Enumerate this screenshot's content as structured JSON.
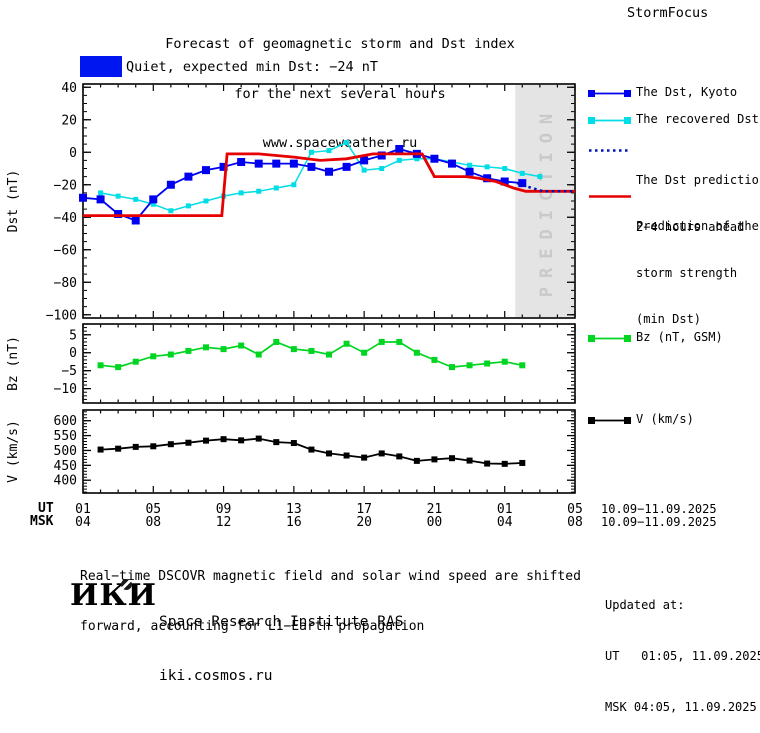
{
  "header": {
    "title_line1": "Forecast of geomagnetic storm and Dst index",
    "title_line2": "for the next several hours",
    "title_line3": "www.spaceweather.ru",
    "brand": "StormFocus"
  },
  "status": {
    "label": "Quiet, expected min Dst: −24 nT",
    "box_color": "#0016f0"
  },
  "legend": {
    "dst_items": [
      {
        "style": "squares-line",
        "color": "#0000f0",
        "label_lines": [
          "The Dst, Kyoto"
        ]
      },
      {
        "style": "squares-line",
        "color": "#00dde6",
        "label_lines": [
          "The recovered Dst"
        ]
      },
      {
        "style": "dotted",
        "color": "#0011bb",
        "label_lines": [
          "The Dst prediction",
          "2−4 hours ahead"
        ]
      },
      {
        "style": "line",
        "color": "#e60000",
        "label_lines": [
          "Prediction of the",
          "storm strength",
          "(min Dst)"
        ]
      }
    ],
    "bz_item": {
      "style": "squares-line",
      "color": "#00d522",
      "label_lines": [
        "Bz (nT, GSM)"
      ]
    },
    "v_item": {
      "style": "squares-line",
      "color": "#000000",
      "label_lines": [
        "V (km/s)"
      ]
    }
  },
  "chart_data": {
    "type": "line",
    "x_axis": {
      "hours_domain": [
        1,
        29
      ],
      "major_tick_every": 4,
      "ut_prefix": "UT",
      "msk_prefix": "MSK",
      "ut_labels": [
        "01",
        "05",
        "09",
        "13",
        "17",
        "21",
        "01",
        "05"
      ],
      "msk_labels": [
        "04",
        "08",
        "12",
        "16",
        "20",
        "00",
        "04",
        "08"
      ],
      "date_range_ut": "10.09−11.09.2025",
      "date_range_msk": "10.09−11.09.2025"
    },
    "plots": [
      {
        "name": "dst",
        "ylabel": "Dst (nT)",
        "ydomain": [
          42,
          -102
        ],
        "yticks": [
          40,
          20,
          0,
          -20,
          -40,
          -60,
          -80,
          -100
        ],
        "yminor_step": 5,
        "prediction_band": {
          "start_hour": 25.6,
          "end_hour": 29,
          "label": "PREDICTION",
          "fill": "#e4e4e4",
          "text_color": "#c9c9c9"
        },
        "series": [
          {
            "id": "dst-recovered",
            "name": "The recovered Dst",
            "color": "#00dde6",
            "width": 1.5,
            "marker": 5,
            "points": [
              [
                2,
                -25
              ],
              [
                3,
                -27
              ],
              [
                4,
                -29
              ],
              [
                5,
                -32
              ],
              [
                6,
                -36
              ],
              [
                7,
                -33
              ],
              [
                8,
                -30
              ],
              [
                9,
                -27
              ],
              [
                10,
                -25
              ],
              [
                11,
                -24
              ],
              [
                12,
                -22
              ],
              [
                13,
                -20
              ],
              [
                14,
                0
              ],
              [
                15,
                1
              ],
              [
                16,
                6
              ],
              [
                17,
                -11
              ],
              [
                18,
                -10
              ],
              [
                19,
                -5
              ],
              [
                20,
                -4
              ],
              [
                21,
                -4
              ],
              [
                22,
                -6
              ],
              [
                23,
                -8
              ],
              [
                24,
                -9
              ],
              [
                25,
                -10
              ],
              [
                26,
                -13
              ],
              [
                27,
                -15
              ]
            ]
          },
          {
            "id": "dst-kyoto",
            "name": "The Dst, Kyoto",
            "color": "#0000f0",
            "width": 1.8,
            "marker": 8,
            "points": [
              [
                1,
                -28
              ],
              [
                2,
                -29
              ],
              [
                3,
                -38
              ],
              [
                4,
                -42
              ],
              [
                5,
                -29
              ],
              [
                6,
                -20
              ],
              [
                7,
                -15
              ],
              [
                8,
                -11
              ],
              [
                9,
                -9
              ],
              [
                10,
                -6
              ],
              [
                11,
                -7
              ],
              [
                12,
                -7
              ],
              [
                13,
                -7
              ],
              [
                14,
                -9
              ],
              [
                15,
                -12
              ],
              [
                16,
                -9
              ],
              [
                17,
                -5
              ],
              [
                18,
                -2
              ],
              [
                19,
                2
              ],
              [
                20,
                -1
              ],
              [
                21,
                -4
              ],
              [
                22,
                -7
              ],
              [
                23,
                -12
              ],
              [
                24,
                -16
              ],
              [
                25,
                -18
              ],
              [
                26,
                -19
              ]
            ]
          },
          {
            "id": "storm-strength",
            "name": "Prediction of the storm strength (min Dst)",
            "color": "#e60000",
            "width": 2.8,
            "marker": 0,
            "points": [
              [
                1,
                -39
              ],
              [
                8.9,
                -39
              ],
              [
                9.2,
                -1
              ],
              [
                11,
                -1
              ],
              [
                13,
                -3
              ],
              [
                14.5,
                -5
              ],
              [
                16,
                -4
              ],
              [
                17.5,
                -1
              ],
              [
                20.3,
                -1
              ],
              [
                21,
                -15
              ],
              [
                22.8,
                -15
              ],
              [
                23.5,
                -16
              ],
              [
                24.5,
                -18
              ],
              [
                25.5,
                -22
              ],
              [
                26.2,
                -24
              ],
              [
                29,
                -24
              ]
            ]
          },
          {
            "id": "dst-prediction",
            "name": "The Dst prediction 2−4 hours ahead",
            "color": "#0011bb",
            "width": 2.5,
            "marker": 0,
            "dash": "2.5 3.5",
            "points": [
              [
                25.7,
                -19
              ],
              [
                26.4,
                -21.5
              ],
              [
                27.2,
                -24
              ],
              [
                29,
                -24
              ]
            ]
          }
        ]
      },
      {
        "name": "bz",
        "ylabel": "Bz (nT)",
        "ydomain": [
          8,
          -14
        ],
        "yticks": [
          5,
          0,
          -5,
          -10
        ],
        "yminor_step": 1,
        "series": [
          {
            "id": "bz",
            "name": "Bz (nT, GSM)",
            "color": "#00d522",
            "width": 1.7,
            "marker": 6,
            "points": [
              [
                2,
                -3.5
              ],
              [
                3,
                -4
              ],
              [
                4,
                -2.5
              ],
              [
                5,
                -1
              ],
              [
                6,
                -0.5
              ],
              [
                7,
                0.5
              ],
              [
                8,
                1.5
              ],
              [
                9,
                1
              ],
              [
                10,
                2
              ],
              [
                11,
                -0.5
              ],
              [
                12,
                3
              ],
              [
                13,
                1
              ],
              [
                14,
                0.5
              ],
              [
                15,
                -0.5
              ],
              [
                16,
                2.5
              ],
              [
                17,
                0
              ],
              [
                18,
                3
              ],
              [
                19,
                3
              ],
              [
                20,
                0
              ],
              [
                21,
                -2
              ],
              [
                22,
                -4
              ],
              [
                23,
                -3.5
              ],
              [
                24,
                -3
              ],
              [
                25,
                -2.5
              ],
              [
                26,
                -3.5
              ]
            ]
          }
        ]
      },
      {
        "name": "v",
        "ylabel": "V (km/s)",
        "ydomain": [
          636,
          357
        ],
        "yticks": [
          600,
          550,
          500,
          450,
          400
        ],
        "yminor_step": 10,
        "series": [
          {
            "id": "v",
            "name": "V (km/s)",
            "color": "#000000",
            "width": 1.8,
            "marker": 6,
            "points": [
              [
                2,
                503
              ],
              [
                3,
                506
              ],
              [
                4,
                512
              ],
              [
                5,
                514
              ],
              [
                6,
                521
              ],
              [
                7,
                526
              ],
              [
                8,
                533
              ],
              [
                9,
                538
              ],
              [
                10,
                534
              ],
              [
                11,
                540
              ],
              [
                12,
                528
              ],
              [
                13,
                525
              ],
              [
                14,
                503
              ],
              [
                15,
                490
              ],
              [
                16,
                483
              ],
              [
                17,
                476
              ],
              [
                18,
                490
              ],
              [
                19,
                480
              ],
              [
                20,
                465
              ],
              [
                21,
                470
              ],
              [
                22,
                474
              ],
              [
                23,
                466
              ],
              [
                24,
                456
              ],
              [
                25,
                455
              ],
              [
                26,
                458
              ]
            ]
          }
        ]
      }
    ]
  },
  "footer": {
    "note_line1": "Real−time DSCOVR magnetic field and solar wind speed are shifted",
    "note_line2": "forward, accounting for L1−Earth propagation",
    "logo_text": "ИКИ",
    "institute_line1": "Space Research Institute RAS",
    "institute_line2": "iki.cosmos.ru",
    "updated_label": "Updated at:",
    "updated_ut": "UT   01:05, 11.09.2025",
    "updated_msk": "MSK 04:05, 11.09.2025"
  }
}
